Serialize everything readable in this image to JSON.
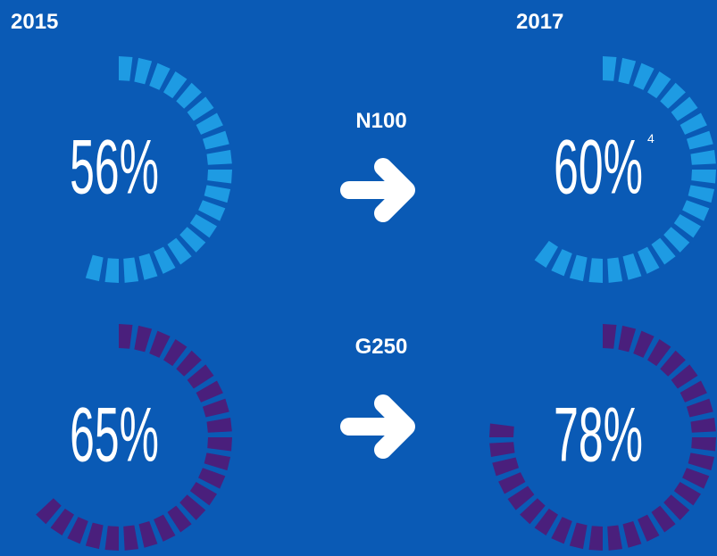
{
  "columns": [
    "2015",
    "2017"
  ],
  "chart_data": [
    {
      "type": "gauge",
      "title": "N100",
      "values": [
        56,
        60
      ],
      "value_labels": [
        "56%",
        "60%"
      ],
      "color": "#1e9be3",
      "note": "4"
    },
    {
      "type": "gauge",
      "title": "G250",
      "values": [
        65,
        78
      ],
      "value_labels": [
        "65%",
        "78%"
      ],
      "color": "#4a1f7c"
    }
  ]
}
